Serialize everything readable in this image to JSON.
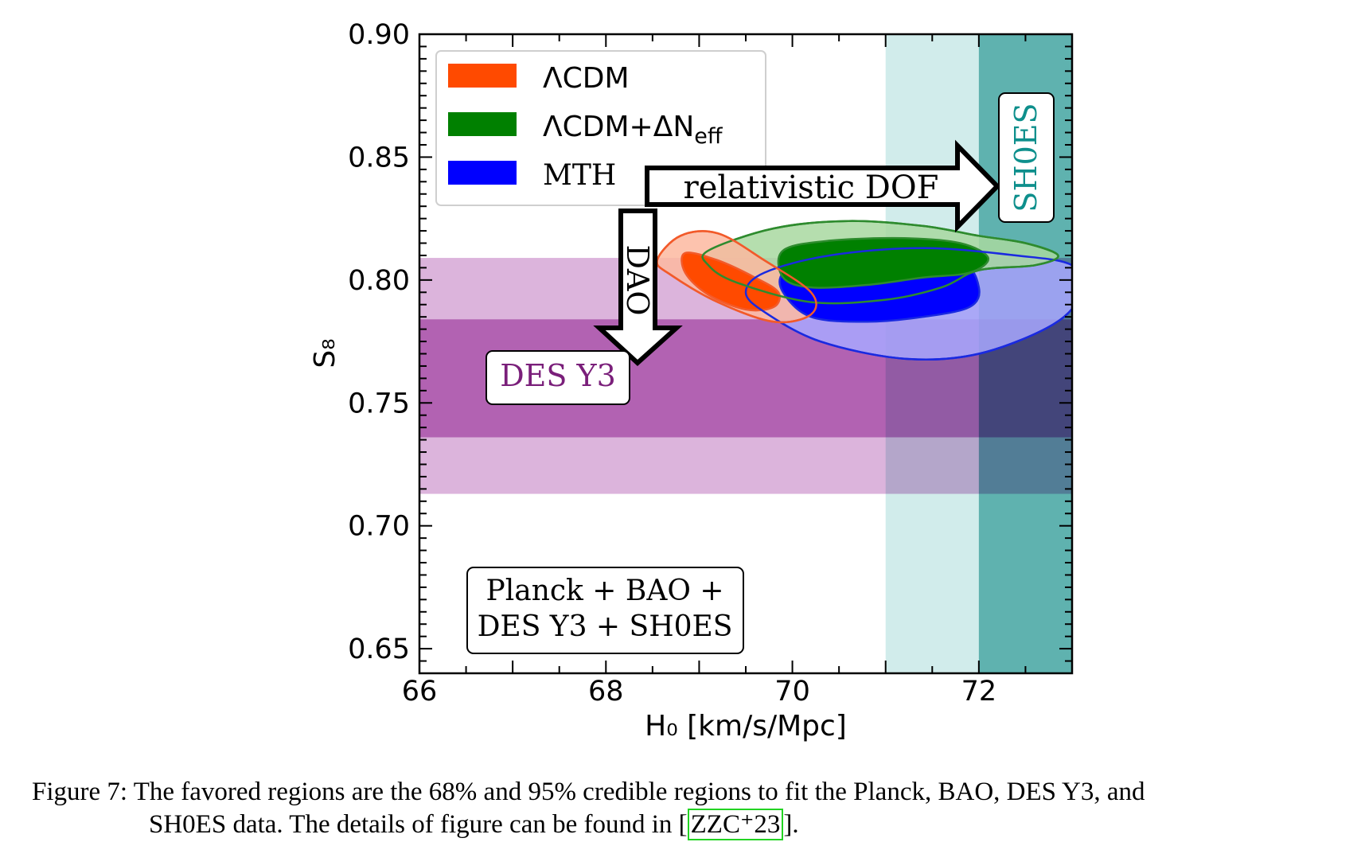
{
  "chart_data": {
    "type": "contour",
    "xlabel": "H₀ [km/s/Mpc]",
    "ylabel": "S₈",
    "xlim": [
      66,
      73
    ],
    "ylim": [
      0.64,
      0.9
    ],
    "xticks": [
      "66",
      "68",
      "70",
      "72"
    ],
    "yticks": [
      "0.90",
      "0.85",
      "0.80",
      "0.75",
      "0.70",
      "0.65"
    ],
    "series": [
      {
        "name": "ΛCDM",
        "color": "#ff4a00",
        "color_95": "#fdb8a0",
        "edge": "#f25a2a",
        "center": [
          69.4,
          0.797
        ],
        "contour_68": [
          [
            68.85,
            0.811
          ],
          [
            69.2,
            0.808
          ],
          [
            69.6,
            0.801
          ],
          [
            69.85,
            0.795
          ],
          [
            69.8,
            0.789
          ],
          [
            69.5,
            0.788
          ],
          [
            69.1,
            0.794
          ],
          [
            68.85,
            0.803
          ]
        ],
        "contour_95": [
          [
            68.55,
            0.808
          ],
          [
            68.8,
            0.818
          ],
          [
            69.2,
            0.819
          ],
          [
            69.7,
            0.808
          ],
          [
            70.2,
            0.795
          ],
          [
            70.2,
            0.786
          ],
          [
            69.8,
            0.783
          ],
          [
            69.2,
            0.791
          ],
          [
            68.7,
            0.802
          ]
        ]
      },
      {
        "name": "ΛCDM+ΔN_eff",
        "base_label": "ΛCDM+ΔN",
        "subscript_label": "eff",
        "color": "#008000",
        "color_95": "#a8d8a0",
        "edge": "#2e8b2e",
        "center": [
          71.0,
          0.806
        ],
        "contour_68": [
          [
            69.9,
            0.812
          ],
          [
            70.4,
            0.816
          ],
          [
            71.2,
            0.817
          ],
          [
            71.8,
            0.815
          ],
          [
            72.1,
            0.809
          ],
          [
            71.9,
            0.803
          ],
          [
            71.4,
            0.801
          ],
          [
            70.8,
            0.798
          ],
          [
            70.2,
            0.797
          ],
          [
            69.9,
            0.801
          ]
        ],
        "contour_95": [
          [
            69.1,
            0.812
          ],
          [
            69.8,
            0.821
          ],
          [
            70.6,
            0.824
          ],
          [
            71.4,
            0.822
          ],
          [
            72.0,
            0.818
          ],
          [
            72.5,
            0.815
          ],
          [
            72.85,
            0.81
          ],
          [
            72.6,
            0.806
          ],
          [
            72.0,
            0.804
          ],
          [
            71.6,
            0.797
          ],
          [
            71.0,
            0.792
          ],
          [
            70.2,
            0.791
          ],
          [
            69.4,
            0.799
          ],
          [
            69.1,
            0.806
          ]
        ]
      },
      {
        "name": "MTH",
        "color": "#0000ff",
        "color_95": "#a8a8ff",
        "edge": "#1a2ae0",
        "center": [
          71.0,
          0.793
        ],
        "contour_68": [
          [
            69.9,
            0.803
          ],
          [
            70.2,
            0.809
          ],
          [
            71.0,
            0.811
          ],
          [
            71.8,
            0.807
          ],
          [
            72.0,
            0.797
          ],
          [
            71.9,
            0.789
          ],
          [
            71.4,
            0.785
          ],
          [
            70.8,
            0.783
          ],
          [
            70.2,
            0.785
          ],
          [
            69.9,
            0.795
          ]
        ],
        "contour_95": [
          [
            69.5,
            0.795
          ],
          [
            69.7,
            0.787
          ],
          [
            70.3,
            0.775
          ],
          [
            71.2,
            0.768
          ],
          [
            72.0,
            0.77
          ],
          [
            72.8,
            0.782
          ],
          [
            73.1,
            0.795
          ],
          [
            73.0,
            0.806
          ],
          [
            72.4,
            0.81
          ],
          [
            71.4,
            0.813
          ],
          [
            70.4,
            0.81
          ],
          [
            69.7,
            0.803
          ]
        ]
      }
    ],
    "bands": [
      {
        "name": "DES Y3",
        "axis": "y",
        "range_68": [
          0.736,
          0.784
        ],
        "range_95": [
          0.713,
          0.809
        ],
        "color_68": "#b262b2",
        "color_95": "#dcb4dc",
        "label_color": "#7a1f7a"
      },
      {
        "name": "SH0ES",
        "axis": "x",
        "range_68": [
          72.0,
          73.0
        ],
        "range_95": [
          71.0,
          73.0
        ],
        "color_68": "#3fa7a5",
        "color_95": "#b5e0df",
        "label_color": "#0e8f8c"
      }
    ],
    "annotations": {
      "relativistic_dof": "relativistic DOF",
      "dao": "DAO",
      "data_line1": "Planck + BAO +",
      "data_line2": "DES Y3 + SH0ES"
    },
    "legend": "top-left"
  },
  "caption": {
    "label": "Figure 7:",
    "text1": "The favored regions are the 68% and 95% credible regions to fit the Planck, BAO, DES Y3, and",
    "text2": "SH0ES data. The details of figure can be found in [",
    "ref": "ZZC⁺23",
    "text3": "]."
  }
}
